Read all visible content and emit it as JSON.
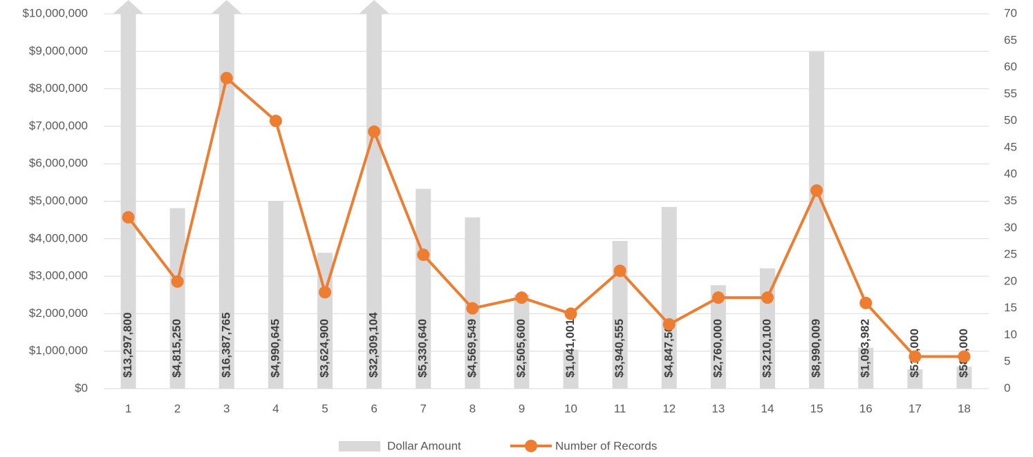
{
  "chart_data": {
    "type": "bar-line",
    "categories": [
      "1",
      "2",
      "3",
      "4",
      "5",
      "6",
      "7",
      "8",
      "9",
      "10",
      "11",
      "12",
      "13",
      "14",
      "15",
      "16",
      "17",
      "18"
    ],
    "series": [
      {
        "name": "Dollar Amount",
        "type": "bar",
        "color": "#d9d9d9",
        "values": [
          13297800,
          4815250,
          16387765,
          4990645,
          3624900,
          32309104,
          5330640,
          4569549,
          2505600,
          1041001,
          3940555,
          4847500,
          2760000,
          3210100,
          8990009,
          1093982,
          517000,
          585000
        ],
        "value_labels": [
          "$13,297,800",
          "$4,815,250",
          "$16,387,765",
          "$4,990,645",
          "$3,624,900",
          "$32,309,104",
          "$5,330,640",
          "$4,569,549",
          "$2,505,600",
          "$1,041,001",
          "$3,940,555",
          "$4,847,500",
          "$2,760,000",
          "$3,210,100",
          "$8,990,009",
          "$1,093,982",
          "$517,000",
          "$585,000"
        ]
      },
      {
        "name": "Number of Records",
        "type": "line",
        "axis": "y2",
        "color": "#ed7d31",
        "values": [
          32,
          20,
          58,
          50,
          18,
          48,
          25,
          15,
          17,
          14,
          22,
          12,
          17,
          17,
          37,
          16,
          6,
          6
        ]
      }
    ],
    "ylim": [
      0,
      10000000
    ],
    "yticks": [
      {
        "value": 0,
        "label": "$0"
      },
      {
        "value": 1000000,
        "label": "$1,000,000"
      },
      {
        "value": 2000000,
        "label": "$2,000,000"
      },
      {
        "value": 3000000,
        "label": "$3,000,000"
      },
      {
        "value": 4000000,
        "label": "$4,000,000"
      },
      {
        "value": 5000000,
        "label": "$5,000,000"
      },
      {
        "value": 6000000,
        "label": "$6,000,000"
      },
      {
        "value": 7000000,
        "label": "$7,000,000"
      },
      {
        "value": 8000000,
        "label": "$8,000,000"
      },
      {
        "value": 9000000,
        "label": "$9,000,000"
      },
      {
        "value": 10000000,
        "label": "$10,000,000"
      }
    ],
    "y2lim": [
      0,
      70
    ],
    "y2ticks": [
      0,
      5,
      10,
      15,
      20,
      25,
      30,
      35,
      40,
      45,
      50,
      55,
      60,
      65,
      70
    ],
    "grid": true,
    "legend": "bottom"
  }
}
